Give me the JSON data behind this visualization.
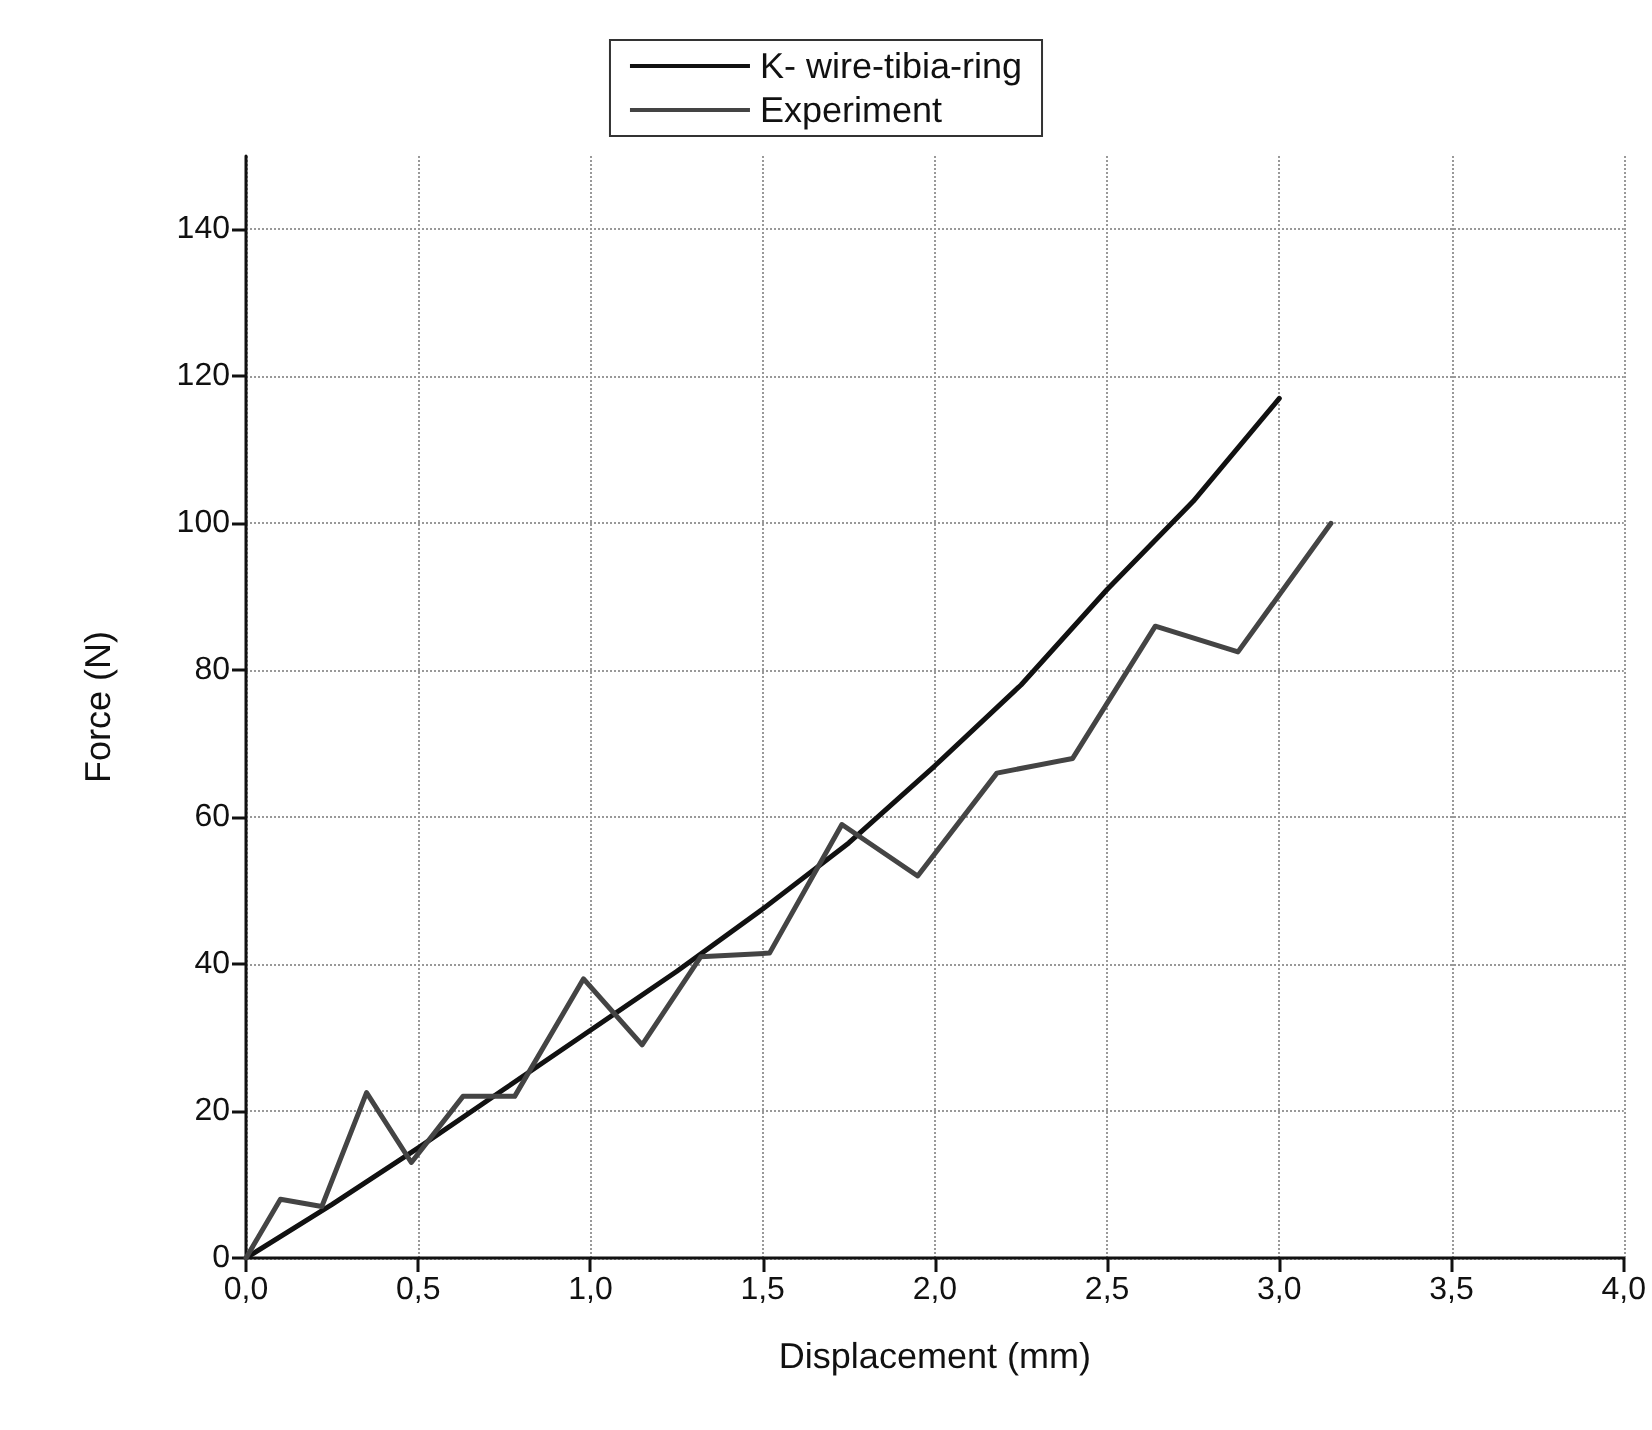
{
  "chart_data": {
    "type": "line",
    "xlabel": "Displacement (mm)",
    "ylabel": "Force (N)",
    "xlim": [
      0,
      4
    ],
    "xticks": [
      {
        "value": 0,
        "label": "0,0"
      },
      {
        "value": 0.5,
        "label": "0,5"
      },
      {
        "value": 1,
        "label": "1,0"
      },
      {
        "value": 1.5,
        "label": "1,5"
      },
      {
        "value": 2,
        "label": "2,0"
      },
      {
        "value": 2.5,
        "label": "2,5"
      },
      {
        "value": 3,
        "label": "3,0"
      },
      {
        "value": 3.5,
        "label": "3,5"
      },
      {
        "value": 4,
        "label": "4,0"
      }
    ],
    "ylim": [
      0,
      150
    ],
    "yticks": [
      0,
      20,
      40,
      60,
      80,
      100,
      120,
      140
    ],
    "grid": true,
    "legend": "top",
    "marker": "none",
    "line_style": "solid",
    "series": [
      {
        "name": "K- wire-tibia-ring",
        "color": "#111111",
        "x": [
          0,
          0.25,
          0.5,
          0.75,
          1,
          1.25,
          1.5,
          1.75,
          2,
          2.25,
          2.5,
          2.75,
          3
        ],
        "values": [
          0,
          7.3,
          15,
          23,
          31,
          39,
          47.5,
          56.5,
          67,
          78,
          91,
          103,
          117
        ]
      },
      {
        "name": "Experiment",
        "color": "#444444",
        "x": [
          0,
          0.1,
          0.22,
          0.35,
          0.48,
          0.63,
          0.78,
          0.98,
          1.15,
          1.32,
          1.52,
          1.73,
          1.95,
          2.18,
          2.4,
          2.64,
          2.88,
          3.15
        ],
        "values": [
          0,
          8,
          7,
          22.5,
          13,
          22,
          22,
          38,
          29,
          41,
          41.5,
          59,
          52,
          66,
          68,
          86,
          82.5,
          100
        ]
      }
    ]
  }
}
